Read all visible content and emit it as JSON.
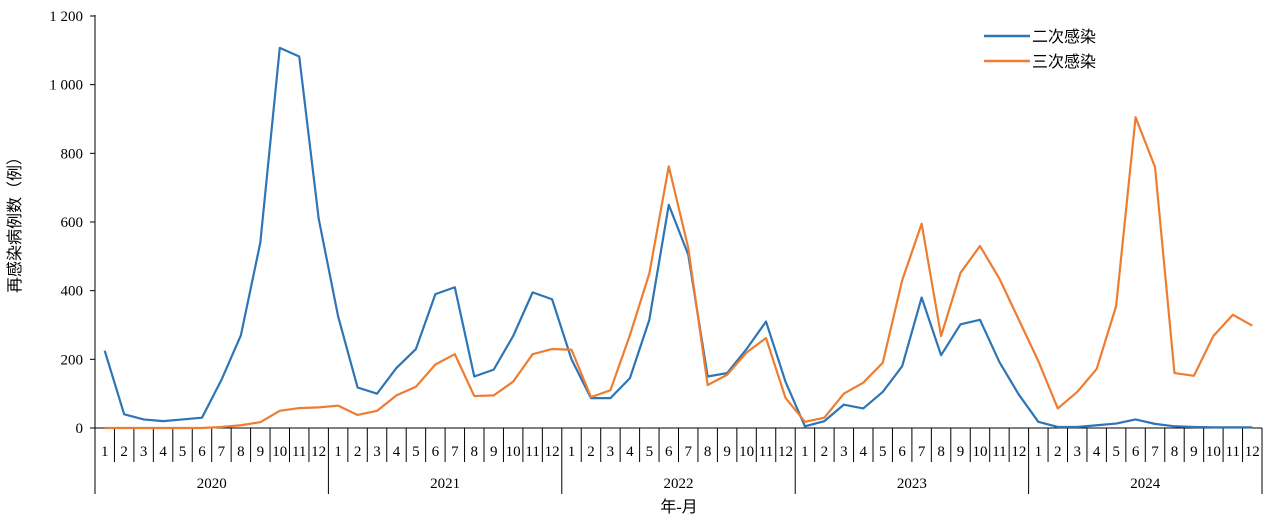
{
  "chart_data": {
    "type": "line",
    "ylabel": "再感染病例数（例）",
    "xlabel": "年-月",
    "ylim": [
      0,
      1200
    ],
    "yticks": [
      0,
      200,
      400,
      600,
      800,
      1000,
      1200
    ],
    "ytick_labels": [
      "0",
      "200",
      "400",
      "600",
      "800",
      "1 000",
      "1 200"
    ],
    "years": [
      "2020",
      "2021",
      "2022",
      "2023",
      "2024"
    ],
    "months": [
      "1",
      "2",
      "3",
      "4",
      "5",
      "6",
      "7",
      "8",
      "9",
      "10",
      "11",
      "12"
    ],
    "legend_position": "top-right",
    "series": [
      {
        "name": "二次感染",
        "color": "#2E75B6",
        "values": [
          225,
          40,
          25,
          20,
          25,
          30,
          140,
          270,
          540,
          1107,
          1082,
          610,
          325,
          118,
          100,
          175,
          230,
          390,
          410,
          150,
          170,
          268,
          395,
          375,
          200,
          87,
          87,
          145,
          315,
          650,
          505,
          150,
          160,
          230,
          310,
          135,
          5,
          20,
          68,
          57,
          105,
          180,
          380,
          212,
          302,
          315,
          192,
          97,
          18,
          3,
          3,
          8,
          13,
          25,
          12,
          5,
          3,
          2,
          2,
          2
        ]
      },
      {
        "name": "三次感染",
        "color": "#ED7D31",
        "values": [
          0,
          0,
          0,
          0,
          0,
          0,
          3,
          8,
          17,
          50,
          58,
          60,
          65,
          38,
          50,
          95,
          120,
          185,
          215,
          93,
          95,
          135,
          215,
          230,
          228,
          90,
          110,
          270,
          450,
          762,
          525,
          125,
          155,
          220,
          262,
          88,
          18,
          30,
          100,
          132,
          190,
          430,
          595,
          268,
          452,
          530,
          435,
          315,
          195,
          57,
          105,
          172,
          355,
          905,
          760,
          160,
          152,
          268,
          330,
          298
        ]
      }
    ]
  }
}
